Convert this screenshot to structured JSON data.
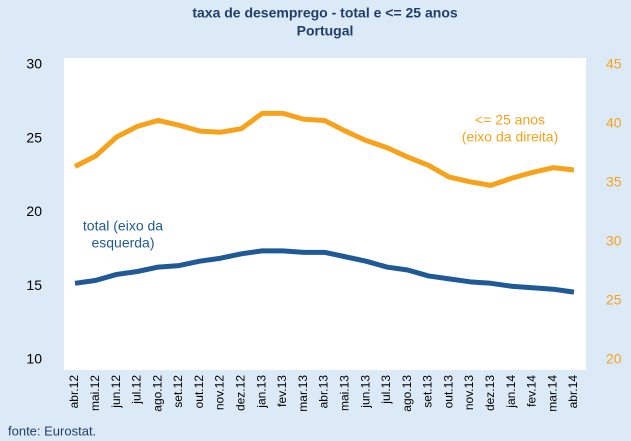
{
  "chart_data": {
    "type": "line",
    "title": "taxa de desemprego - total e <= 25 anos",
    "subtitle": "Portugal",
    "categories": [
      "abr.12",
      "mai.12",
      "jun.12",
      "jul.12",
      "ago.12",
      "set.12",
      "out.12",
      "nov.12",
      "dez.12",
      "jan.13",
      "fev.13",
      "mar.13",
      "abr.13",
      "mai.13",
      "jun.13",
      "jul.13",
      "ago.13",
      "set.13",
      "out.13",
      "nov.13",
      "dez.13",
      "jan.14",
      "fev.14",
      "mar.14",
      "abr.14"
    ],
    "series": [
      {
        "name": "total",
        "color": "#1f5a96",
        "values": [
          15.2,
          15.4,
          15.8,
          16.0,
          16.3,
          16.4,
          16.7,
          16.9,
          17.2,
          17.4,
          17.4,
          17.3,
          17.3,
          17.0,
          16.7,
          16.3,
          16.1,
          15.7,
          15.5,
          15.3,
          15.2,
          15.0,
          14.9,
          14.8,
          14.6
        ]
      },
      {
        "name": "<= 25 anos",
        "color": "#f7a21b",
        "axis": "y2",
        "values": [
          36.4,
          37.3,
          38.9,
          39.8,
          40.3,
          39.9,
          39.4,
          39.3,
          39.6,
          40.9,
          40.9,
          40.4,
          40.3,
          39.4,
          38.6,
          38.0,
          37.2,
          36.5,
          35.5,
          35.1,
          34.8,
          35.4,
          35.9,
          36.3,
          36.1
        ]
      }
    ],
    "ylim": [
      10,
      30
    ],
    "yticks": [
      10,
      15,
      20,
      25,
      30
    ],
    "y2lim": [
      20,
      45
    ],
    "y2ticks": [
      20,
      25,
      30,
      35,
      40,
      45
    ],
    "annotations": [
      {
        "lines": [
          "<= 25 anos",
          "(eixo da direita)"
        ],
        "color": "#f7a21b"
      },
      {
        "lines": [
          "total (eixo da",
          "esquerda)"
        ],
        "color": "#1f5a96"
      }
    ],
    "source": "fonte: Eurostat."
  }
}
